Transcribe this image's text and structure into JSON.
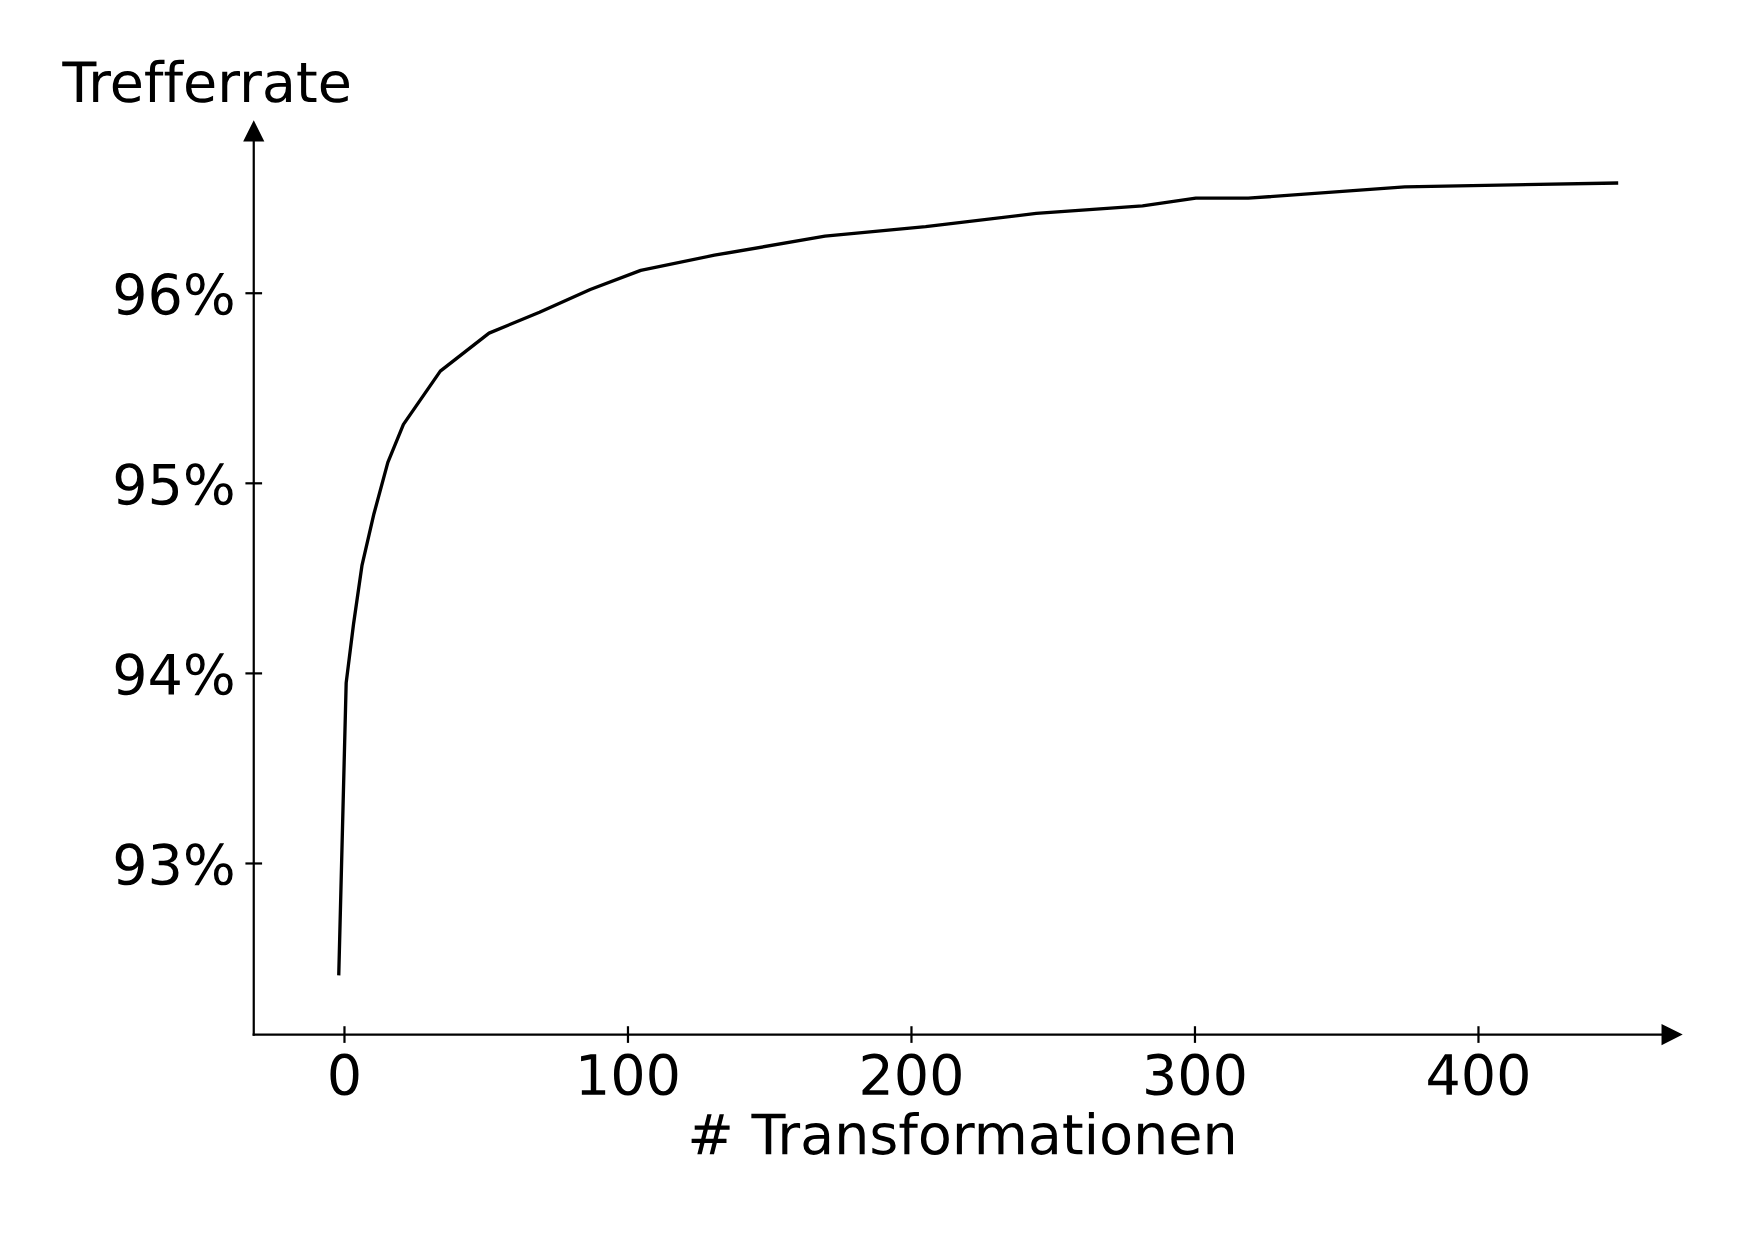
{
  "chart_data": {
    "type": "line",
    "ylabel": "Trefferrate",
    "xlabel": "# Transformationen",
    "x": [
      -2,
      0.6,
      3.2,
      6.2,
      10.4,
      15.3,
      20.8,
      33.8,
      51,
      68.8,
      86.7,
      104.5,
      130.5,
      169.5,
      205,
      244,
      281.5,
      300.3,
      318.8,
      374,
      448.7
    ],
    "series": [
      {
        "color": "#000000",
        "values": [
          92.42,
          93.95,
          94.26,
          94.57,
          94.84,
          95.11,
          95.31,
          95.59,
          95.79,
          95.9,
          96.02,
          96.12,
          96.2,
          96.3,
          96.35,
          96.42,
          96.46,
          96.5,
          96.5,
          96.56,
          96.58
        ]
      }
    ],
    "xlim": [
      -32,
      468
    ],
    "ylim": [
      92.1,
      96.85
    ],
    "xticks": [
      0,
      100,
      200,
      300,
      400
    ],
    "yticks": [
      {
        "value": 93,
        "label": "93%"
      },
      {
        "value": 94,
        "label": "94%"
      },
      {
        "value": 95,
        "label": "95%"
      },
      {
        "value": 96,
        "label": "96%"
      }
    ],
    "marker": "none",
    "line_style": "solid"
  }
}
